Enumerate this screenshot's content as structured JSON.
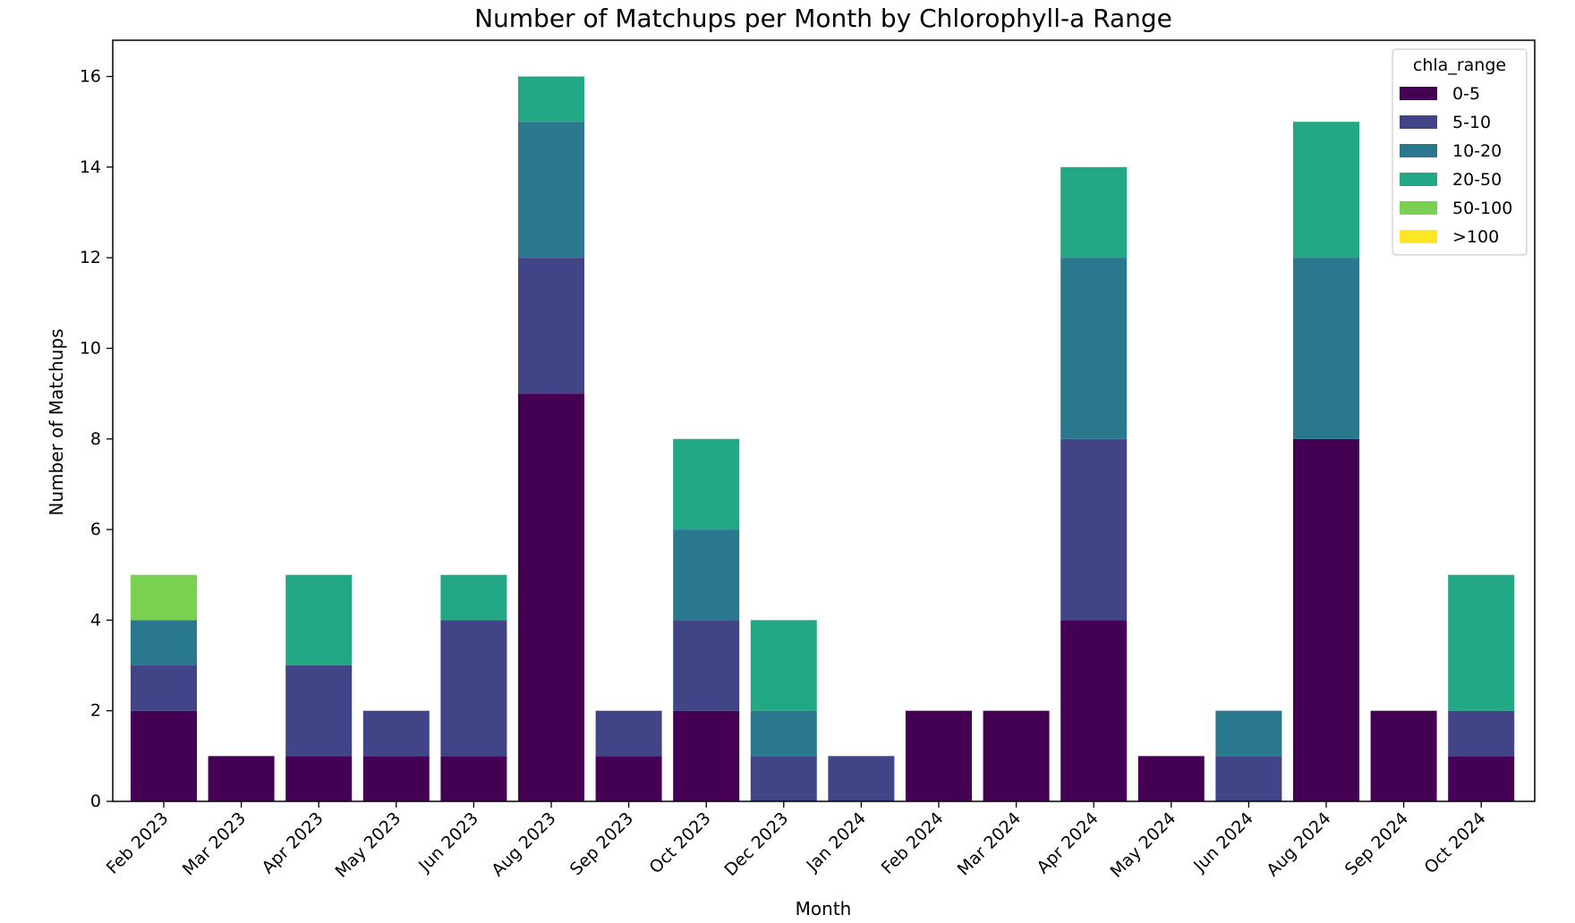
{
  "chart_data": {
    "type": "bar",
    "stacked": true,
    "title": "Number of Matchups per Month by Chlorophyll-a Range",
    "xlabel": "Month",
    "ylabel": "Number of Matchups",
    "ylim": [
      0,
      16.8
    ],
    "yticks": [
      0,
      2,
      4,
      6,
      8,
      10,
      12,
      14,
      16
    ],
    "grid": false,
    "legend_title": "chla_range",
    "legend_position": "top-right",
    "categories": [
      "Feb 2023",
      "Mar 2023",
      "Apr 2023",
      "May 2023",
      "Jun 2023",
      "Aug 2023",
      "Sep 2023",
      "Oct 2023",
      "Dec 2023",
      "Jan 2024",
      "Feb 2024",
      "Mar 2024",
      "Apr 2024",
      "May 2024",
      "Jun 2024",
      "Aug 2024",
      "Sep 2024",
      "Oct 2024"
    ],
    "series": [
      {
        "name": "0-5",
        "color": "#440154",
        "values": [
          2,
          1,
          1,
          1,
          1,
          9,
          1,
          2,
          0,
          0,
          2,
          2,
          4,
          1,
          0,
          8,
          2,
          1
        ]
      },
      {
        "name": "5-10",
        "color": "#414487",
        "values": [
          1,
          0,
          2,
          1,
          3,
          3,
          1,
          2,
          1,
          1,
          0,
          0,
          4,
          0,
          1,
          0,
          0,
          1
        ]
      },
      {
        "name": "10-20",
        "color": "#2a788e",
        "values": [
          1,
          0,
          0,
          0,
          0,
          3,
          0,
          2,
          1,
          0,
          0,
          0,
          4,
          0,
          1,
          4,
          0,
          0
        ]
      },
      {
        "name": "20-50",
        "color": "#22a884",
        "values": [
          0,
          0,
          2,
          0,
          1,
          1,
          0,
          2,
          2,
          0,
          0,
          0,
          2,
          0,
          0,
          3,
          0,
          3
        ]
      },
      {
        "name": "50-100",
        "color": "#7ad151",
        "values": [
          1,
          0,
          0,
          0,
          0,
          0,
          0,
          0,
          0,
          0,
          0,
          0,
          0,
          0,
          0,
          0,
          0,
          0
        ]
      },
      {
        "name": ">100",
        "color": "#fde725",
        "values": [
          0,
          0,
          0,
          0,
          0,
          0,
          0,
          0,
          0,
          0,
          0,
          0,
          0,
          0,
          0,
          0,
          0,
          0
        ]
      }
    ]
  }
}
